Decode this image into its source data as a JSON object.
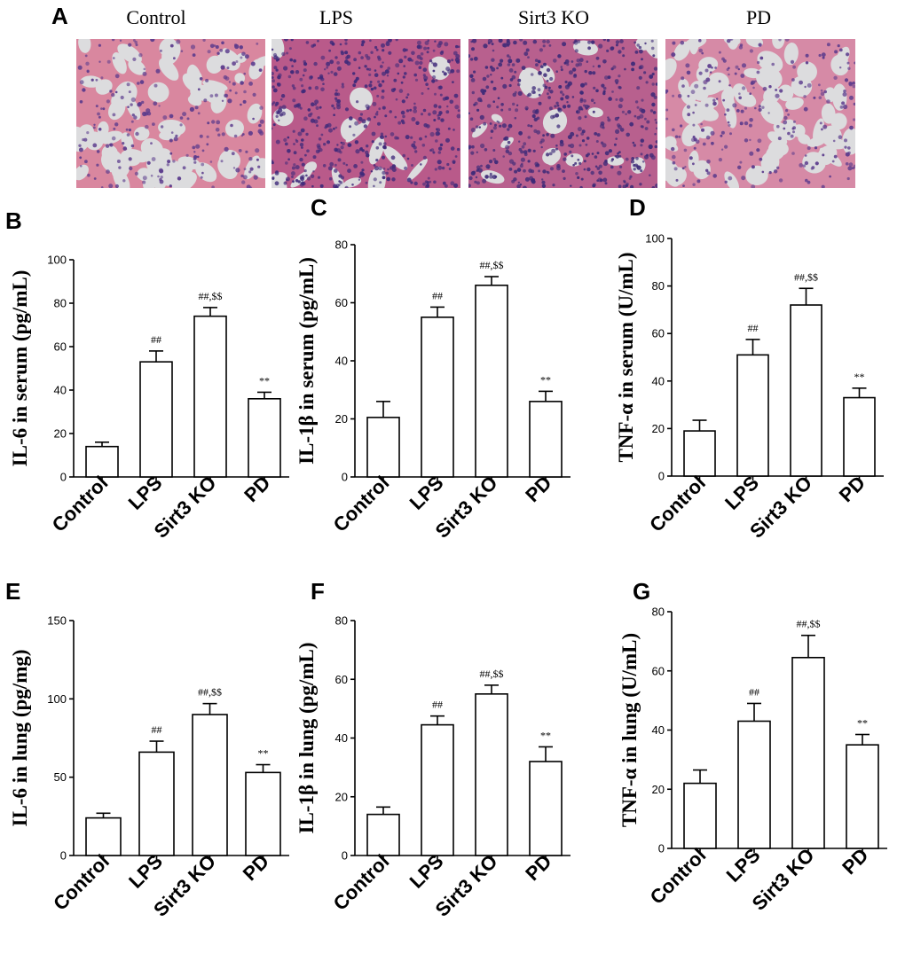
{
  "figure": {
    "micrograph_panel": {
      "letter": "A",
      "images": [
        {
          "label": "Control",
          "alveolar_space": "open",
          "tissue_color": "#d9879f",
          "nuclei_color": "#5a3a8c"
        },
        {
          "label": "LPS",
          "alveolar_space": "consolidated",
          "tissue_color": "#b95a8a",
          "nuclei_color": "#3f2a7a"
        },
        {
          "label": "Sirt3 KO",
          "alveolar_space": "consolidated",
          "tissue_color": "#b8608e",
          "nuclei_color": "#3d2a78"
        },
        {
          "label": "PD",
          "alveolar_space": "open",
          "tissue_color": "#d68aa6",
          "nuclei_color": "#5a3a8c"
        }
      ]
    }
  },
  "chart_data": [
    {
      "type": "bar",
      "letter": "B",
      "categories": [
        "Control",
        "LPS",
        "Sirt3 KO",
        "PD"
      ],
      "values": [
        14,
        53,
        74,
        36
      ],
      "errors": [
        2,
        5,
        4,
        3
      ],
      "annotations": [
        "",
        "##",
        "##,$$",
        "**"
      ],
      "ylabel": "IL-6 in serum (pg/mL)",
      "ylim": [
        0,
        100
      ],
      "yticks": [
        0,
        20,
        40,
        60,
        80,
        100
      ],
      "grid": false,
      "legend": "none"
    },
    {
      "type": "bar",
      "letter": "C",
      "categories": [
        "Control",
        "LPS",
        "Sirt3 KO",
        "PD"
      ],
      "values": [
        20.5,
        55,
        66,
        26
      ],
      "errors": [
        5.5,
        3.5,
        3,
        3.5
      ],
      "annotations": [
        "",
        "##",
        "##,$$",
        "**"
      ],
      "ylabel": "IL-1β in serum (pg/mL)",
      "ylim": [
        0,
        80
      ],
      "yticks": [
        0,
        20,
        40,
        60,
        80
      ],
      "grid": false,
      "legend": "none"
    },
    {
      "type": "bar",
      "letter": "D",
      "categories": [
        "Control",
        "LPS",
        "Sirt3 KO",
        "PD"
      ],
      "values": [
        19,
        51,
        72,
        33
      ],
      "errors": [
        4.5,
        6.5,
        7,
        4
      ],
      "annotations": [
        "",
        "##",
        "##,$$",
        "**"
      ],
      "ylabel": "TNF-α in serum (U/mL)",
      "ylim": [
        0,
        100
      ],
      "yticks": [
        0,
        20,
        40,
        60,
        80,
        100
      ],
      "grid": false,
      "legend": "none"
    },
    {
      "type": "bar",
      "letter": "E",
      "categories": [
        "Control",
        "LPS",
        "Sirt3 KO",
        "PD"
      ],
      "values": [
        24,
        66,
        90,
        53
      ],
      "errors": [
        3,
        7,
        7,
        5
      ],
      "annotations": [
        "",
        "##",
        "##,$$",
        "**"
      ],
      "ylabel": "IL-6 in lung (pg/mg)",
      "ylim": [
        0,
        150
      ],
      "yticks": [
        0,
        50,
        100,
        150
      ],
      "grid": false,
      "legend": "none"
    },
    {
      "type": "bar",
      "letter": "F",
      "categories": [
        "Control",
        "LPS",
        "Sirt3 KO",
        "PD"
      ],
      "values": [
        14,
        44.5,
        55,
        32
      ],
      "errors": [
        2.5,
        3,
        3,
        5
      ],
      "annotations": [
        "",
        "##",
        "##,$$",
        "**"
      ],
      "ylabel": "IL-1β in lung (pg/mL)",
      "ylim": [
        0,
        80
      ],
      "yticks": [
        0,
        20,
        40,
        60,
        80
      ],
      "grid": false,
      "legend": "none"
    },
    {
      "type": "bar",
      "letter": "G",
      "categories": [
        "Control",
        "LPS",
        "Sirt3 KO",
        "PD"
      ],
      "values": [
        22,
        43,
        64.5,
        35
      ],
      "errors": [
        4.5,
        6,
        7.5,
        3.5
      ],
      "annotations": [
        "",
        "##",
        "##,$$",
        "**"
      ],
      "ylabel": "TNF-α in lung (U/mL)",
      "ylim": [
        0,
        80
      ],
      "yticks": [
        0,
        20,
        40,
        60,
        80
      ],
      "grid": false,
      "legend": "none"
    }
  ]
}
